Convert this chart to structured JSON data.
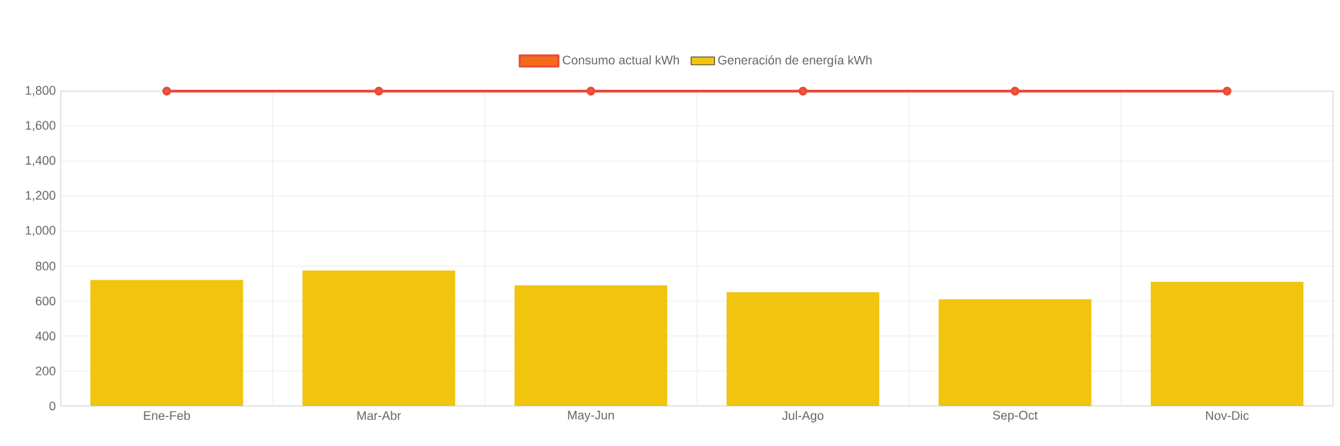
{
  "chart_data": {
    "type": "bar",
    "categories": [
      "Ene-Feb",
      "Mar-Abr",
      "May-Jun",
      "Jul-Ago",
      "Sep-Oct",
      "Nov-Dic"
    ],
    "series": [
      {
        "name": "Consumo actual kWh",
        "type": "line",
        "color": "#e74c3c",
        "marker": "circle",
        "values": [
          1800,
          1800,
          1800,
          1800,
          1800,
          1800
        ]
      },
      {
        "name": "Generación de energía kWh",
        "color": "#f1c40f",
        "values": [
          720,
          775,
          690,
          650,
          610,
          710
        ]
      }
    ],
    "ylim": [
      0,
      1800
    ],
    "yticks": [
      0,
      200,
      400,
      600,
      800,
      {
        "value": 1000,
        "label": "1,000"
      },
      {
        "value": 1200,
        "label": "1,200"
      },
      {
        "value": 1400,
        "label": "1,400"
      },
      {
        "value": 1600,
        "label": "1,600"
      },
      {
        "value": 1800,
        "label": "1,800"
      }
    ],
    "grid": true,
    "legend": "top"
  }
}
